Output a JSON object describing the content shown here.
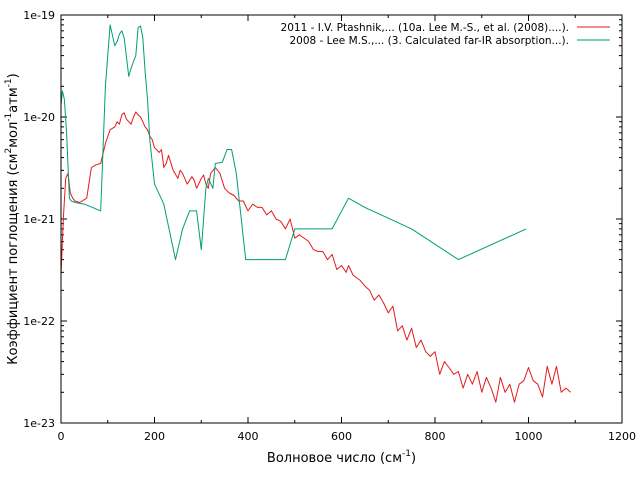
{
  "chart_data": {
    "type": "line",
    "title": "",
    "xlabel": "Волновое число (см",
    "xlabel_sup": "-1",
    "xlabel_end": ")",
    "ylabel_parts": [
      "Коэффициент поглощения (см",
      "2",
      "мол",
      "-1",
      "атм",
      "-1",
      ")"
    ],
    "xlim": [
      0,
      1200
    ],
    "ylim": [
      1e-23,
      1e-19
    ],
    "y_scale": "log",
    "grid": false,
    "legend_position": "top-right",
    "x_ticks": [
      0,
      200,
      400,
      600,
      800,
      1000,
      1200
    ],
    "x_tick_labels": [
      "0",
      "200",
      "400",
      "600",
      "800",
      "1000",
      "1200"
    ],
    "y_ticks": [
      1e-23,
      1e-22,
      1e-21,
      1e-20,
      1e-19
    ],
    "y_tick_labels": [
      "1e-23",
      "1e-22",
      "1e-21",
      "1e-20",
      "1e-19"
    ],
    "series": [
      {
        "name": "2011 - I.V. Ptashnik,... (10a. Lee M.-S., et al. (2008)....).",
        "color": "#e41a1c",
        "x": [
          0,
          5,
          10,
          15,
          20,
          25,
          30,
          40,
          55,
          65,
          75,
          85,
          95,
          105,
          115,
          120,
          125,
          130,
          135,
          140,
          145,
          150,
          155,
          160,
          165,
          170,
          175,
          180,
          185,
          190,
          195,
          200,
          210,
          215,
          220,
          225,
          230,
          240,
          250,
          255,
          260,
          270,
          280,
          285,
          290,
          300,
          305,
          310,
          315,
          320,
          330,
          340,
          350,
          360,
          370,
          380,
          390,
          400,
          410,
          420,
          430,
          440,
          450,
          460,
          470,
          480,
          490,
          500,
          510,
          520,
          530,
          540,
          550,
          560,
          570,
          580,
          590,
          600,
          610,
          615,
          625,
          640,
          650,
          660,
          670,
          680,
          690,
          700,
          710,
          720,
          730,
          740,
          750,
          760,
          770,
          780,
          790,
          800,
          810,
          820,
          830,
          840,
          850,
          860,
          870,
          880,
          890,
          900,
          910,
          920,
          930,
          940,
          950,
          960,
          970,
          980,
          990,
          1000,
          1010,
          1020,
          1030,
          1040,
          1050,
          1060,
          1070,
          1080,
          1090
        ],
        "values": [
          2.8e-22,
          1e-21,
          2.5e-21,
          2.8e-21,
          1.8e-21,
          1.6e-21,
          1.5e-21,
          1.45e-21,
          1.6e-21,
          3.2e-21,
          3.4e-21,
          3.5e-21,
          5.5e-21,
          7.5e-21,
          8e-21,
          9e-21,
          8.5e-21,
          1.05e-20,
          1.1e-20,
          9.5e-21,
          9e-21,
          8.5e-21,
          1e-20,
          1.12e-20,
          1.05e-20,
          1e-20,
          9e-21,
          8e-21,
          7.5e-21,
          6.5e-21,
          6e-21,
          5e-21,
          4.5e-21,
          4.8e-21,
          3.2e-21,
          3.5e-21,
          4.2e-21,
          3e-21,
          2.5e-21,
          3e-21,
          2.8e-21,
          2.2e-21,
          2.6e-21,
          2.4e-21,
          2e-21,
          2.5e-21,
          2.7e-21,
          2.2e-21,
          2e-21,
          2.8e-21,
          3.2e-21,
          2.8e-21,
          2e-21,
          1.8e-21,
          1.7e-21,
          1.5e-21,
          1.5e-21,
          1.2e-21,
          1.4e-21,
          1.3e-21,
          1.3e-21,
          1.1e-21,
          1.2e-21,
          1e-21,
          9.5e-22,
          8e-22,
          1e-21,
          6.5e-22,
          7e-22,
          6.5e-22,
          6e-22,
          5e-22,
          4.8e-22,
          4.8e-22,
          4e-22,
          4.5e-22,
          3.2e-22,
          3.5e-22,
          3e-22,
          3.5e-22,
          2.8e-22,
          2.5e-22,
          2.2e-22,
          2e-22,
          1.6e-22,
          1.8e-22,
          1.5e-22,
          1.2e-22,
          1.4e-22,
          8e-23,
          9e-23,
          6.5e-23,
          8.5e-23,
          5.5e-23,
          6.5e-23,
          5e-23,
          4.5e-23,
          5e-23,
          3e-23,
          4e-23,
          3.5e-23,
          3e-23,
          3.2e-23,
          2.2e-23,
          3e-23,
          2.4e-23,
          3.2e-23,
          2e-23,
          2.8e-23,
          2.2e-23,
          1.6e-23,
          2.8e-23,
          2e-23,
          2.4e-23,
          1.6e-23,
          2.4e-23,
          2.6e-23,
          3.5e-23,
          2.6e-23,
          2.4e-23,
          1.8e-23,
          3.6e-23,
          2.4e-23,
          3.6e-23,
          2e-23,
          2.2e-23,
          2e-23
        ]
      },
      {
        "name": "2008 - Lee M.S.,... (3. Calculated far-IR absorption...).",
        "color": "#009e73",
        "x": [
          0,
          3,
          7,
          12,
          18,
          22,
          30,
          50,
          85,
          95,
          105,
          115,
          120,
          125,
          130,
          135,
          145,
          150,
          155,
          160,
          165,
          170,
          175,
          180,
          185,
          190,
          200,
          220,
          245,
          260,
          275,
          290,
          300,
          310,
          315,
          325,
          330,
          345,
          355,
          365,
          375,
          395,
          440,
          480,
          500,
          520,
          560,
          580,
          615,
          650,
          750,
          850,
          995
        ],
        "values": [
          1.3e-20,
          1.8e-20,
          1.5e-20,
          7e-21,
          1.6e-21,
          1.5e-21,
          1.45e-21,
          1.4e-21,
          1.2e-21,
          2e-20,
          8e-20,
          5e-20,
          5.5e-20,
          6.5e-20,
          7e-20,
          6e-20,
          2.5e-20,
          3e-20,
          3.5e-20,
          4e-20,
          7.5e-20,
          7.8e-20,
          6e-20,
          2.8e-20,
          1.5e-20,
          6e-21,
          2.2e-21,
          1.4e-21,
          4e-22,
          8e-22,
          1.2e-21,
          1.2e-21,
          5e-22,
          2e-21,
          2.5e-21,
          2e-21,
          3.5e-21,
          3.6e-21,
          4.8e-21,
          4.8e-21,
          2.8e-21,
          4e-22,
          4e-22,
          4e-22,
          8e-22,
          8e-22,
          8e-22,
          8e-22,
          1.6e-21,
          1.3e-21,
          8e-22,
          4e-22,
          8e-22
        ]
      }
    ]
  }
}
